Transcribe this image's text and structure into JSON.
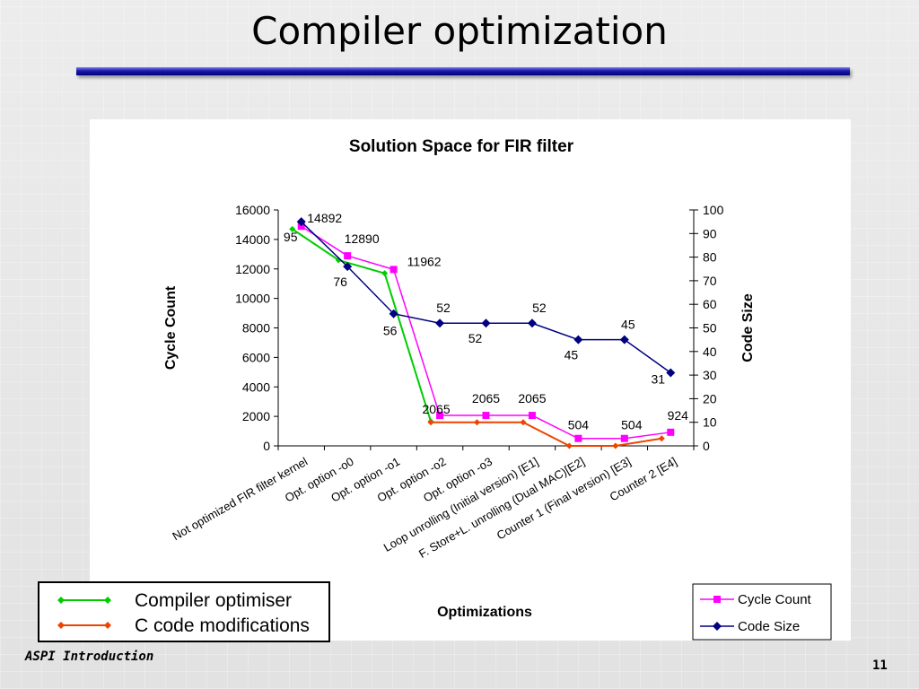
{
  "slide": {
    "title": "Compiler optimization",
    "footer_left": "ASPI Introduction",
    "page_number": "11"
  },
  "legend_overlay": {
    "items": [
      {
        "label": "Compiler optimiser",
        "color": "#00cc00"
      },
      {
        "label": "C code modifications",
        "color": "#ee4400"
      }
    ]
  },
  "chart_data": {
    "type": "line",
    "title": "Solution Space for FIR filter",
    "xlabel": "Optimizations",
    "ylabel": "Cycle Count",
    "y2label": "Code Size",
    "ylim": [
      0,
      16000
    ],
    "y2lim": [
      0,
      100
    ],
    "yticks": [
      "0",
      "2000",
      "4000",
      "6000",
      "8000",
      "10000",
      "12000",
      "14000",
      "16000"
    ],
    "y2ticks": [
      "0",
      "10",
      "20",
      "30",
      "40",
      "50",
      "60",
      "70",
      "80",
      "90",
      "100"
    ],
    "categories": [
      "Not optimized FIR filter kernel",
      "Opt. option -o0",
      "Opt. option -o1",
      "Opt. option -o2",
      "Opt. option -o3",
      "Loop unrolling (Initial version) [E1]",
      "F. Store+L. unrolling (Dual MAC)[E2]",
      "Counter 1 (Final version) [E3]",
      "Counter 2 [E4]"
    ],
    "legend_position": "bottom-right",
    "series": [
      {
        "name": "Cycle Count",
        "axis": "left",
        "color": "#ff00ff",
        "marker": "square",
        "values": [
          14892,
          12890,
          11962,
          2065,
          2065,
          2065,
          504,
          504,
          924
        ],
        "labels": [
          "14892",
          "12890",
          "11962",
          "2065",
          "2065",
          "2065",
          "504",
          "504",
          "924"
        ]
      },
      {
        "name": "Code Size",
        "axis": "right",
        "color": "#000080",
        "marker": "diamond",
        "values": [
          95,
          76,
          56,
          52,
          52,
          52,
          45,
          45,
          31
        ],
        "labels": [
          "95",
          "76",
          "56",
          "52",
          "52",
          "52",
          "45",
          "45",
          "31"
        ]
      }
    ],
    "overlay_series": [
      {
        "legend": "Compiler optimiser",
        "color": "#00cc00",
        "values": [
          14700,
          12600,
          11700,
          1650
        ]
      },
      {
        "legend": "C code modifications",
        "color": "#ee4400",
        "values": [
          1600,
          1600,
          1600,
          0,
          0,
          500
        ],
        "start_index": 3
      }
    ]
  }
}
